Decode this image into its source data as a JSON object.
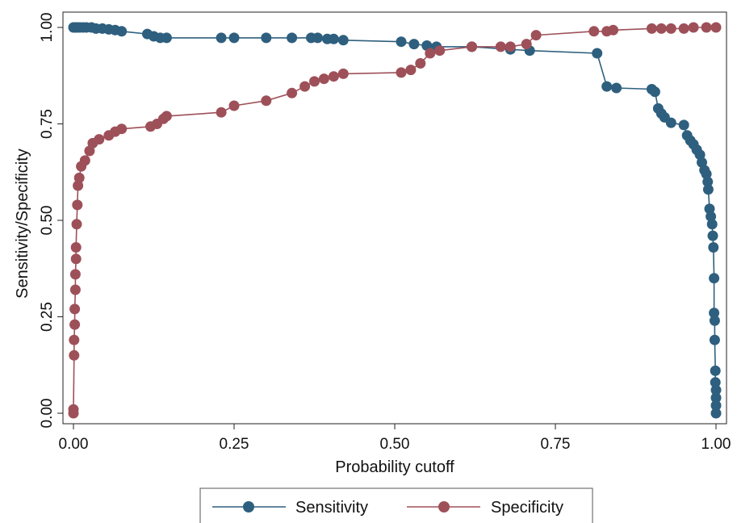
{
  "chart_data": {
    "type": "line",
    "xlabel": "Probability cutoff",
    "ylabel": "Sensitivity/Specificity",
    "xlim": [
      0,
      1
    ],
    "ylim": [
      0,
      1
    ],
    "xticks": [
      "0.00",
      "0.25",
      "0.50",
      "0.75",
      "1.00"
    ],
    "yticks": [
      "0.00",
      "0.25",
      "0.50",
      "0.75",
      "1.00"
    ],
    "grid": false,
    "legend_position": "bottom",
    "series": [
      {
        "name": "Sensitivity",
        "color": "#2e5f7e",
        "marker": "circle",
        "points": [
          [
            0.0,
            1.0
          ],
          [
            0.003,
            1.0
          ],
          [
            0.006,
            1.0
          ],
          [
            0.01,
            1.0
          ],
          [
            0.015,
            1.0
          ],
          [
            0.02,
            1.0
          ],
          [
            0.028,
            1.0
          ],
          [
            0.035,
            0.997
          ],
          [
            0.045,
            0.997
          ],
          [
            0.055,
            0.995
          ],
          [
            0.065,
            0.993
          ],
          [
            0.075,
            0.99
          ],
          [
            0.115,
            0.983
          ],
          [
            0.125,
            0.977
          ],
          [
            0.135,
            0.973
          ],
          [
            0.145,
            0.973
          ],
          [
            0.23,
            0.973
          ],
          [
            0.25,
            0.973
          ],
          [
            0.3,
            0.973
          ],
          [
            0.34,
            0.973
          ],
          [
            0.37,
            0.973
          ],
          [
            0.38,
            0.973
          ],
          [
            0.395,
            0.97
          ],
          [
            0.405,
            0.97
          ],
          [
            0.42,
            0.967
          ],
          [
            0.51,
            0.963
          ],
          [
            0.53,
            0.957
          ],
          [
            0.55,
            0.953
          ],
          [
            0.565,
            0.95
          ],
          [
            0.62,
            0.95
          ],
          [
            0.68,
            0.943
          ],
          [
            0.71,
            0.94
          ],
          [
            0.815,
            0.933
          ],
          [
            0.83,
            0.847
          ],
          [
            0.845,
            0.843
          ],
          [
            0.9,
            0.84
          ],
          [
            0.905,
            0.833
          ],
          [
            0.91,
            0.79
          ],
          [
            0.915,
            0.777
          ],
          [
            0.92,
            0.767
          ],
          [
            0.93,
            0.753
          ],
          [
            0.95,
            0.747
          ],
          [
            0.955,
            0.72
          ],
          [
            0.96,
            0.707
          ],
          [
            0.965,
            0.697
          ],
          [
            0.97,
            0.683
          ],
          [
            0.975,
            0.67
          ],
          [
            0.978,
            0.65
          ],
          [
            0.982,
            0.63
          ],
          [
            0.985,
            0.62
          ],
          [
            0.987,
            0.6
          ],
          [
            0.988,
            0.58
          ],
          [
            0.99,
            0.53
          ],
          [
            0.992,
            0.51
          ],
          [
            0.994,
            0.49
          ],
          [
            0.995,
            0.46
          ],
          [
            0.996,
            0.43
          ],
          [
            0.997,
            0.35
          ],
          [
            0.997,
            0.26
          ],
          [
            0.998,
            0.24
          ],
          [
            0.998,
            0.19
          ],
          [
            0.999,
            0.11
          ],
          [
            0.999,
            0.08
          ],
          [
            1.0,
            0.06
          ],
          [
            1.0,
            0.04
          ],
          [
            1.0,
            0.02
          ],
          [
            1.0,
            0.0
          ]
        ]
      },
      {
        "name": "Specificity",
        "color": "#9e5059",
        "marker": "circle",
        "points": [
          [
            0.0,
            0.0
          ],
          [
            0.0,
            0.01
          ],
          [
            0.001,
            0.15
          ],
          [
            0.001,
            0.19
          ],
          [
            0.002,
            0.23
          ],
          [
            0.002,
            0.27
          ],
          [
            0.003,
            0.32
          ],
          [
            0.003,
            0.36
          ],
          [
            0.004,
            0.4
          ],
          [
            0.004,
            0.43
          ],
          [
            0.005,
            0.49
          ],
          [
            0.006,
            0.54
          ],
          [
            0.007,
            0.59
          ],
          [
            0.009,
            0.61
          ],
          [
            0.012,
            0.64
          ],
          [
            0.018,
            0.655
          ],
          [
            0.025,
            0.68
          ],
          [
            0.03,
            0.7
          ],
          [
            0.04,
            0.71
          ],
          [
            0.055,
            0.72
          ],
          [
            0.065,
            0.73
          ],
          [
            0.075,
            0.737
          ],
          [
            0.12,
            0.743
          ],
          [
            0.13,
            0.75
          ],
          [
            0.14,
            0.763
          ],
          [
            0.145,
            0.77
          ],
          [
            0.23,
            0.78
          ],
          [
            0.25,
            0.797
          ],
          [
            0.3,
            0.81
          ],
          [
            0.34,
            0.83
          ],
          [
            0.36,
            0.847
          ],
          [
            0.375,
            0.86
          ],
          [
            0.39,
            0.867
          ],
          [
            0.405,
            0.873
          ],
          [
            0.42,
            0.88
          ],
          [
            0.51,
            0.883
          ],
          [
            0.525,
            0.89
          ],
          [
            0.54,
            0.907
          ],
          [
            0.555,
            0.933
          ],
          [
            0.57,
            0.94
          ],
          [
            0.62,
            0.95
          ],
          [
            0.665,
            0.95
          ],
          [
            0.68,
            0.95
          ],
          [
            0.705,
            0.957
          ],
          [
            0.72,
            0.98
          ],
          [
            0.81,
            0.99
          ],
          [
            0.83,
            0.99
          ],
          [
            0.84,
            0.993
          ],
          [
            0.9,
            0.997
          ],
          [
            0.915,
            0.997
          ],
          [
            0.93,
            0.997
          ],
          [
            0.95,
            0.997
          ],
          [
            0.965,
            1.0
          ],
          [
            0.985,
            1.0
          ],
          [
            1.0,
            1.0
          ]
        ]
      }
    ]
  }
}
